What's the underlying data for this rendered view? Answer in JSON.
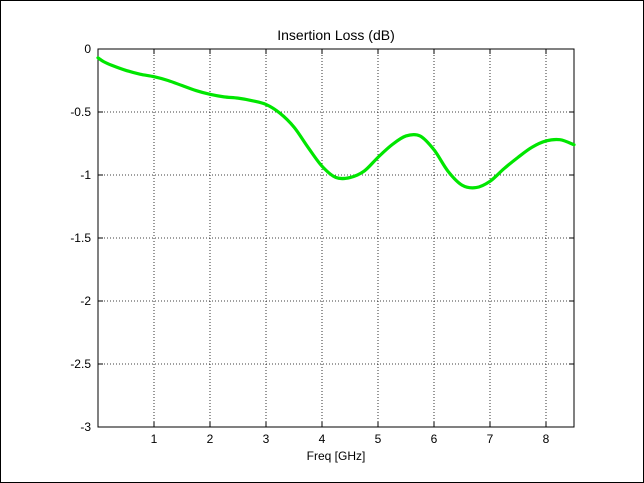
{
  "chart_data": {
    "type": "line",
    "title": "Insertion Loss (dB)",
    "xlabel": "Freq [GHz]",
    "ylabel": "",
    "xlim": [
      0,
      8.5
    ],
    "ylim": [
      -3,
      0
    ],
    "xticks": [
      1,
      2,
      3,
      4,
      5,
      6,
      7,
      8
    ],
    "yticks": [
      0,
      -0.5,
      -1,
      -1.5,
      -2,
      -2.5,
      -3
    ],
    "xtick_labels": [
      "1",
      "2",
      "3",
      "4",
      "5",
      "6",
      "7",
      "8"
    ],
    "ytick_labels": [
      "0",
      "-0.5",
      "-1",
      "-1.5",
      "-2",
      "-2.5",
      "-3"
    ],
    "grid": true,
    "series": [
      {
        "color": "#00e600",
        "x": [
          0.0,
          0.1,
          0.25,
          0.5,
          0.75,
          1.0,
          1.25,
          1.5,
          1.75,
          2.0,
          2.25,
          2.5,
          2.75,
          3.0,
          3.25,
          3.5,
          3.75,
          4.0,
          4.25,
          4.5,
          4.75,
          5.0,
          5.25,
          5.5,
          5.75,
          6.0,
          6.25,
          6.5,
          6.75,
          7.0,
          7.25,
          7.5,
          7.75,
          8.0,
          8.25,
          8.5
        ],
        "values": [
          -0.07,
          -0.1,
          -0.13,
          -0.17,
          -0.2,
          -0.22,
          -0.25,
          -0.29,
          -0.33,
          -0.36,
          -0.38,
          -0.39,
          -0.41,
          -0.44,
          -0.51,
          -0.62,
          -0.78,
          -0.93,
          -1.02,
          -1.02,
          -0.97,
          -0.86,
          -0.76,
          -0.69,
          -0.69,
          -0.8,
          -0.97,
          -1.08,
          -1.1,
          -1.05,
          -0.95,
          -0.86,
          -0.78,
          -0.73,
          -0.72,
          -0.76
        ]
      }
    ]
  }
}
